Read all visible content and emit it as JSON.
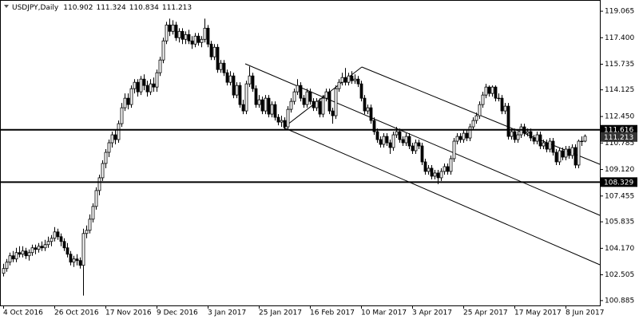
{
  "chart_data": {
    "type": "candlestick",
    "symbol": "USDJPY,Daily",
    "up_color": "#ffffff",
    "down_color": "#000000",
    "line_color": "#000000",
    "ylim": [
      100.58,
      119.77
    ],
    "yticks": [
      119.065,
      {
        "value": 117.4,
        "label": "117.400"
      },
      115.735,
      114.125,
      {
        "value": 112.45,
        "label": "112.450"
      },
      110.785,
      {
        "value": 109.12,
        "label": "109.120"
      },
      107.455,
      105.835,
      {
        "value": 104.17,
        "label": "104.170"
      },
      102.505,
      100.885
    ],
    "hlines": [
      111.616,
      108.329
    ],
    "categories": [
      "4 Oct 2016",
      null,
      null,
      null,
      null,
      null,
      null,
      null,
      null,
      null,
      null,
      null,
      null,
      null,
      null,
      null,
      "26 Oct 2016",
      null,
      null,
      null,
      null,
      null,
      null,
      null,
      null,
      null,
      null,
      null,
      null,
      null,
      null,
      null,
      "17 Nov 2016",
      null,
      null,
      null,
      null,
      null,
      null,
      null,
      null,
      null,
      null,
      null,
      null,
      null,
      null,
      null,
      "9 Dec 2016",
      null,
      null,
      null,
      null,
      null,
      null,
      null,
      null,
      null,
      null,
      null,
      null,
      null,
      null,
      null,
      "3 Jan 2017",
      null,
      null,
      null,
      null,
      null,
      null,
      null,
      null,
      null,
      null,
      null,
      null,
      null,
      null,
      null,
      "25 Jan 2017",
      null,
      null,
      null,
      null,
      null,
      null,
      null,
      null,
      null,
      null,
      null,
      null,
      null,
      null,
      null,
      "16 Feb 2017",
      null,
      null,
      null,
      null,
      null,
      null,
      null,
      null,
      null,
      null,
      null,
      null,
      null,
      null,
      null,
      "10 Mar 2017",
      null,
      null,
      null,
      null,
      null,
      null,
      null,
      null,
      null,
      null,
      null,
      null,
      null,
      null,
      null,
      "3 Apr 2017",
      null,
      null,
      null,
      null,
      null,
      null,
      null,
      null,
      null,
      null,
      null,
      null,
      null,
      null,
      null,
      "25 Apr 2017",
      null,
      null,
      null,
      null,
      null,
      null,
      null,
      null,
      null,
      null,
      null,
      null,
      null,
      null,
      null,
      "17 May 2017",
      null,
      null,
      null,
      null,
      null,
      null,
      null,
      null,
      null,
      null,
      null,
      null,
      null,
      null,
      null,
      "8 Jun 2017",
      null,
      null,
      null,
      null,
      null,
      null
    ],
    "ohlc": [
      [
        102.6,
        103.2,
        102.4,
        102.9
      ],
      [
        102.9,
        103.5,
        102.7,
        103.3
      ],
      [
        103.3,
        103.9,
        103.1,
        103.7
      ],
      [
        103.7,
        104.0,
        103.3,
        103.5
      ],
      [
        103.5,
        104.2,
        103.3,
        103.9
      ],
      [
        103.9,
        104.3,
        103.6,
        103.8
      ],
      [
        103.8,
        104.3,
        103.6,
        104.0
      ],
      [
        104.0,
        104.2,
        103.5,
        103.7
      ],
      [
        103.7,
        104.1,
        103.4,
        103.9
      ],
      [
        103.9,
        104.4,
        103.7,
        104.2
      ],
      [
        104.2,
        104.4,
        103.8,
        104.1
      ],
      [
        104.1,
        104.5,
        103.9,
        104.3
      ],
      [
        104.3,
        104.6,
        104.0,
        104.2
      ],
      [
        104.2,
        104.7,
        104.0,
        104.4
      ],
      [
        104.4,
        104.9,
        104.2,
        104.6
      ],
      [
        104.6,
        105.0,
        104.3,
        104.8
      ],
      [
        104.8,
        105.5,
        104.6,
        105.2
      ],
      [
        105.2,
        105.4,
        104.7,
        104.9
      ],
      [
        104.9,
        105.1,
        104.3,
        104.6
      ],
      [
        104.6,
        104.8,
        104.0,
        104.2
      ],
      [
        104.2,
        104.5,
        103.6,
        103.8
      ],
      [
        103.8,
        104.0,
        103.1,
        103.3
      ],
      [
        103.3,
        103.7,
        103.0,
        103.5
      ],
      [
        103.5,
        103.8,
        103.1,
        103.4
      ],
      [
        103.4,
        103.6,
        102.9,
        103.1
      ],
      [
        103.1,
        105.4,
        101.2,
        105.1
      ],
      [
        105.1,
        105.6,
        104.8,
        105.3
      ],
      [
        105.3,
        106.3,
        105.1,
        106.0
      ],
      [
        106.0,
        107.0,
        105.8,
        106.8
      ],
      [
        106.8,
        108.0,
        106.6,
        107.8
      ],
      [
        107.8,
        108.8,
        107.5,
        108.6
      ],
      [
        108.6,
        109.7,
        108.4,
        109.5
      ],
      [
        109.5,
        110.4,
        109.2,
        110.2
      ],
      [
        110.2,
        111.0,
        109.9,
        110.8
      ],
      [
        110.8,
        111.5,
        110.5,
        111.3
      ],
      [
        111.3,
        111.6,
        110.7,
        111.0
      ],
      [
        111.0,
        112.2,
        110.8,
        112.0
      ],
      [
        112.0,
        113.3,
        111.8,
        113.0
      ],
      [
        113.0,
        113.9,
        112.8,
        113.6
      ],
      [
        113.6,
        113.9,
        112.9,
        113.2
      ],
      [
        113.2,
        114.4,
        113.0,
        114.2
      ],
      [
        114.2,
        114.8,
        113.9,
        114.6
      ],
      [
        114.6,
        114.8,
        113.7,
        114.0
      ],
      [
        114.0,
        115.0,
        113.8,
        114.8
      ],
      [
        114.8,
        115.1,
        114.1,
        114.4
      ],
      [
        114.4,
        114.7,
        113.7,
        114.0
      ],
      [
        114.0,
        114.8,
        113.8,
        114.5
      ],
      [
        114.5,
        114.9,
        114.0,
        114.3
      ],
      [
        114.3,
        115.4,
        114.0,
        115.2
      ],
      [
        115.2,
        116.2,
        115.0,
        116.0
      ],
      [
        116.0,
        117.4,
        115.8,
        117.2
      ],
      [
        117.2,
        118.4,
        117.0,
        118.2
      ],
      [
        118.2,
        118.6,
        117.5,
        117.8
      ],
      [
        117.8,
        118.5,
        117.6,
        118.2
      ],
      [
        118.2,
        118.4,
        117.2,
        117.4
      ],
      [
        117.4,
        118.0,
        117.1,
        117.8
      ],
      [
        117.8,
        118.0,
        117.0,
        117.3
      ],
      [
        117.3,
        117.8,
        117.0,
        117.6
      ],
      [
        117.6,
        117.9,
        117.0,
        117.2
      ],
      [
        117.2,
        117.5,
        116.7,
        117.0
      ],
      [
        117.0,
        117.7,
        116.8,
        117.5
      ],
      [
        117.5,
        117.7,
        116.9,
        117.1
      ],
      [
        117.1,
        117.5,
        116.8,
        117.3
      ],
      [
        117.3,
        118.6,
        117.1,
        118.0
      ],
      [
        118.0,
        118.2,
        116.8,
        117.0
      ],
      [
        117.0,
        117.2,
        116.0,
        116.2
      ],
      [
        116.2,
        117.0,
        116.0,
        116.8
      ],
      [
        116.8,
        117.0,
        115.2,
        115.4
      ],
      [
        115.4,
        116.0,
        115.2,
        115.8
      ],
      [
        115.8,
        116.0,
        115.0,
        115.2
      ],
      [
        115.2,
        115.4,
        114.4,
        114.6
      ],
      [
        114.6,
        115.3,
        114.4,
        115.0
      ],
      [
        115.0,
        115.2,
        113.6,
        113.8
      ],
      [
        113.8,
        114.6,
        113.6,
        114.4
      ],
      [
        114.4,
        114.6,
        113.0,
        113.2
      ],
      [
        113.2,
        113.5,
        112.6,
        112.8
      ],
      [
        112.8,
        114.7,
        112.6,
        114.5
      ],
      [
        114.5,
        115.6,
        114.3,
        115.0
      ],
      [
        115.0,
        115.2,
        114.0,
        114.2
      ],
      [
        114.2,
        114.4,
        113.0,
        113.2
      ],
      [
        113.2,
        113.8,
        113.0,
        113.5
      ],
      [
        113.5,
        113.7,
        112.6,
        112.8
      ],
      [
        112.8,
        113.8,
        112.6,
        113.6
      ],
      [
        113.6,
        113.8,
        112.4,
        112.6
      ],
      [
        112.6,
        113.4,
        112.4,
        113.2
      ],
      [
        113.2,
        113.4,
        112.2,
        112.4
      ],
      [
        112.4,
        112.6,
        111.9,
        112.1
      ],
      [
        112.1,
        112.5,
        111.8,
        112.2
      ],
      [
        112.2,
        112.4,
        111.6,
        111.8
      ],
      [
        111.8,
        113.1,
        111.6,
        112.9
      ],
      [
        112.9,
        113.6,
        112.7,
        113.4
      ],
      [
        113.4,
        114.2,
        113.2,
        114.0
      ],
      [
        114.0,
        114.8,
        113.8,
        114.4
      ],
      [
        114.4,
        114.6,
        113.4,
        113.6
      ],
      [
        113.6,
        113.8,
        113.0,
        113.2
      ],
      [
        113.2,
        114.2,
        113.0,
        114.0
      ],
      [
        114.0,
        114.2,
        113.2,
        113.4
      ],
      [
        113.4,
        113.6,
        112.8,
        113.0
      ],
      [
        113.0,
        113.6,
        112.8,
        113.4
      ],
      [
        113.4,
        113.6,
        112.4,
        112.6
      ],
      [
        112.6,
        113.8,
        112.4,
        113.6
      ],
      [
        113.6,
        114.2,
        113.4,
        114.0
      ],
      [
        114.0,
        114.2,
        112.6,
        112.8
      ],
      [
        112.8,
        113.0,
        112.0,
        112.5
      ],
      [
        112.5,
        114.4,
        112.3,
        114.2
      ],
      [
        114.2,
        114.8,
        114.0,
        114.6
      ],
      [
        114.6,
        115.2,
        114.4,
        114.9
      ],
      [
        114.9,
        115.5,
        114.4,
        114.6
      ],
      [
        114.6,
        115.2,
        114.4,
        115.0
      ],
      [
        115.0,
        115.3,
        114.5,
        114.7
      ],
      [
        114.7,
        115.1,
        114.5,
        114.8
      ],
      [
        114.8,
        115.0,
        114.3,
        114.5
      ],
      [
        114.5,
        114.7,
        113.4,
        113.6
      ],
      [
        113.6,
        113.8,
        112.6,
        112.8
      ],
      [
        112.8,
        113.2,
        112.6,
        113.0
      ],
      [
        113.0,
        113.2,
        112.0,
        112.2
      ],
      [
        112.2,
        112.4,
        111.3,
        111.5
      ],
      [
        111.5,
        111.7,
        110.8,
        111.0
      ],
      [
        111.0,
        111.2,
        110.5,
        110.7
      ],
      [
        110.7,
        111.4,
        110.5,
        111.2
      ],
      [
        111.2,
        111.4,
        110.6,
        110.8
      ],
      [
        110.8,
        111.0,
        110.1,
        110.5
      ],
      [
        110.5,
        111.5,
        110.3,
        111.3
      ],
      [
        111.3,
        111.8,
        111.1,
        111.5
      ],
      [
        111.5,
        111.7,
        110.8,
        111.0
      ],
      [
        111.0,
        111.2,
        110.6,
        110.8
      ],
      [
        110.8,
        111.4,
        110.6,
        111.2
      ],
      [
        111.2,
        111.4,
        110.4,
        110.6
      ],
      [
        110.6,
        110.8,
        110.1,
        110.3
      ],
      [
        110.3,
        111.0,
        110.1,
        110.8
      ],
      [
        110.8,
        111.0,
        110.4,
        110.6
      ],
      [
        110.6,
        110.8,
        109.4,
        109.6
      ],
      [
        109.6,
        109.8,
        108.8,
        109.0
      ],
      [
        109.0,
        109.4,
        108.8,
        109.2
      ],
      [
        109.2,
        109.4,
        108.5,
        108.7
      ],
      [
        108.7,
        109.1,
        108.5,
        108.9
      ],
      [
        108.9,
        109.1,
        108.2,
        108.6
      ],
      [
        108.6,
        109.2,
        108.4,
        109.0
      ],
      [
        109.0,
        109.5,
        108.8,
        109.3
      ],
      [
        109.3,
        109.5,
        108.8,
        109.0
      ],
      [
        109.0,
        110.0,
        108.8,
        109.8
      ],
      [
        109.8,
        111.1,
        109.6,
        110.9
      ],
      [
        110.9,
        111.4,
        110.7,
        111.2
      ],
      [
        111.2,
        111.4,
        110.8,
        111.0
      ],
      [
        111.0,
        111.6,
        110.8,
        111.4
      ],
      [
        111.4,
        111.6,
        110.9,
        111.1
      ],
      [
        111.1,
        112.0,
        110.9,
        111.8
      ],
      [
        111.8,
        112.4,
        111.6,
        112.2
      ],
      [
        112.2,
        112.7,
        112.0,
        112.5
      ],
      [
        112.5,
        113.4,
        112.3,
        113.2
      ],
      [
        113.2,
        114.0,
        113.0,
        113.8
      ],
      [
        113.8,
        114.5,
        113.6,
        114.3
      ],
      [
        114.3,
        114.4,
        113.7,
        113.9
      ],
      [
        113.9,
        114.4,
        113.7,
        114.3
      ],
      [
        114.3,
        114.4,
        113.4,
        113.6
      ],
      [
        113.6,
        113.9,
        113.4,
        113.6
      ],
      [
        113.6,
        113.8,
        112.6,
        112.8
      ],
      [
        112.8,
        113.3,
        112.6,
        113.1
      ],
      [
        113.1,
        113.3,
        111.0,
        111.2
      ],
      [
        111.2,
        111.7,
        111.0,
        111.5
      ],
      [
        111.5,
        111.7,
        110.8,
        111.0
      ],
      [
        111.0,
        111.5,
        110.8,
        111.3
      ],
      [
        111.3,
        112.0,
        111.1,
        111.8
      ],
      [
        111.8,
        112.0,
        111.2,
        111.4
      ],
      [
        111.4,
        111.7,
        111.2,
        111.5
      ],
      [
        111.5,
        111.7,
        110.9,
        111.1
      ],
      [
        111.1,
        111.3,
        110.7,
        110.9
      ],
      [
        110.9,
        111.5,
        110.7,
        111.3
      ],
      [
        111.3,
        111.5,
        110.4,
        110.6
      ],
      [
        110.6,
        111.0,
        110.4,
        110.8
      ],
      [
        110.8,
        111.0,
        110.2,
        110.4
      ],
      [
        110.4,
        111.1,
        110.2,
        110.9
      ],
      [
        110.9,
        111.1,
        110.0,
        110.2
      ],
      [
        110.2,
        110.4,
        109.4,
        109.6
      ],
      [
        109.6,
        110.5,
        109.4,
        110.3
      ],
      [
        110.3,
        110.5,
        109.7,
        109.9
      ],
      [
        109.9,
        110.6,
        109.7,
        110.4
      ],
      [
        110.4,
        110.6,
        109.8,
        110.0
      ],
      [
        110.0,
        110.7,
        109.8,
        110.5
      ],
      [
        110.5,
        110.7,
        109.2,
        109.4
      ],
      [
        109.4,
        111.0,
        109.2,
        110.9
      ],
      [
        110.9,
        111.2,
        110.6,
        110.9
      ],
      [
        110.902,
        111.324,
        110.834,
        111.213
      ]
    ]
  }
}
